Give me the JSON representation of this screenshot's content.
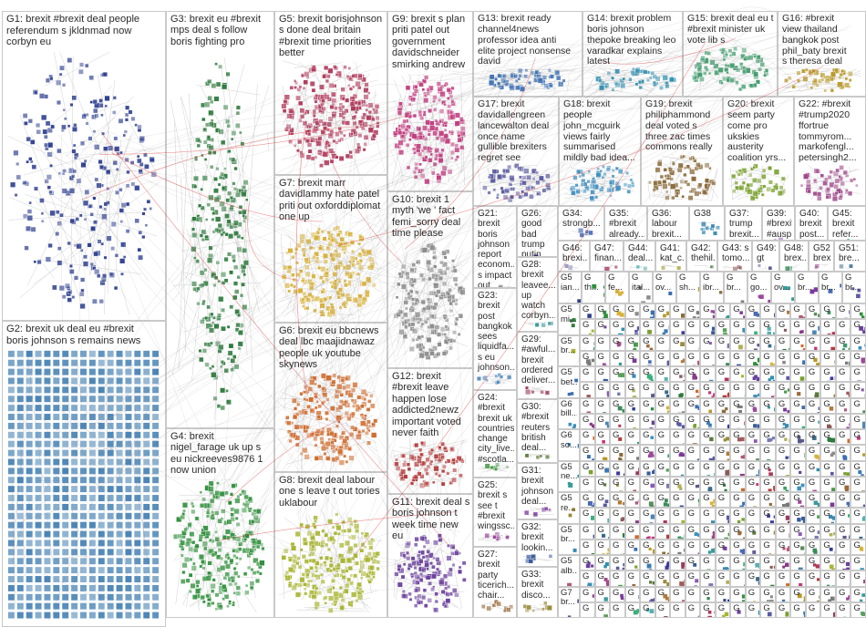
{
  "colors": {
    "border": "#c9c9c9",
    "edge": "#9a9a9a",
    "highlight": "#d33"
  },
  "groups": [
    {
      "id": "G1",
      "label": "G1: brexit #brexit deal people\nreferendum s jkldnmad now\ncorbyn eu",
      "color": "#2d3f8f"
    },
    {
      "id": "G2",
      "label": "G2: brexit uk deal eu #brexit\nboris johnson s remains news",
      "color": "#4a84b6"
    },
    {
      "id": "G3",
      "label": "G3: brexit eu #brexit\nmps deal s follow\nboris fighting pro",
      "color": "#2e7a3d"
    },
    {
      "id": "G4",
      "label": "G4: brexit\nnigel_farage uk up s\neu nickreeves9876 1\nnow union",
      "color": "#2e8f3a"
    },
    {
      "id": "G5",
      "label": "G5: brexit borisjohnson\ns done deal britain\n#brexit time priorities\nbetter",
      "color": "#b0375a"
    },
    {
      "id": "G6",
      "label": "G6: brexit eu bbcnews\ndeal lbc maajidnawaz\npeople uk youtube\nskynews",
      "color": "#d06a2a"
    },
    {
      "id": "G7",
      "label": "G7: brexit marr\ndavidlammy hate patel\npriti out oxforddiplomat\none up",
      "color": "#d9b23a"
    },
    {
      "id": "G8",
      "label": "G8: brexit deal labour\none s leave t out tories\nuklabour",
      "color": "#a8b530"
    },
    {
      "id": "G9",
      "label": "G9: brexit s plan\npriti patel out\ngovernment\ndavidschneider\nsmirking andrew",
      "color": "#c2397d"
    },
    {
      "id": "G10",
      "label": "G10: brexit 1\nmyth 'we ' fact\nfemi_sorry deal\ntime please",
      "color": "#8a8a8a"
    },
    {
      "id": "G11",
      "label": "G11: brexit deal s\nboris johnson t\nweek time new eu",
      "color": "#6a3f9c"
    },
    {
      "id": "G12",
      "label": "G12: brexit\n#brexit leave\nhappen lose\naddicted2newz\nimportant voted\nnever faith",
      "color": "#b33a3a"
    },
    {
      "id": "G13",
      "label": "G13: brexit ready\nchannel4news\nprofessor idea anti\nelite project nonsense\ndavid",
      "color": "#3a6fb3"
    },
    {
      "id": "G14",
      "label": "G14: brexit problem\nboris johnson\nthepoke breaking leo\nvaradkar explains\nlatest",
      "color": "#2f8fb0"
    },
    {
      "id": "G15",
      "label": "G15: brexit deal eu t\n#brexit minister uk\nvote lib s",
      "color": "#3d9a6a"
    },
    {
      "id": "G16",
      "label": "G16: #brexit\nview thailand\nbangkok post\nphil_baty brexit\ns theresa deal",
      "color": "#b89a2a"
    },
    {
      "id": "G17",
      "label": "G17: brexit\ndavidallengreen\nlancewalton deal\nonce name\ngullible brexiters\nregret see",
      "color": "#5a5aa0"
    },
    {
      "id": "G18",
      "label": "G18: brexit\npeople\njohn_mcguirk\nviews fairly\nsummarised\nmildly bad idea...",
      "color": "#3f8fbf"
    },
    {
      "id": "G19",
      "label": "G19: brexit\nphiliphammond\ndeal voted s\nthree zac times\ncommons really",
      "color": "#8a6a3a"
    },
    {
      "id": "G20",
      "label": "G20: brexit\nseem party\ncome pro\nukskies\nausterity\ncoalition yrs...",
      "color": "#7aa030"
    },
    {
      "id": "G22",
      "label": "G22: #brexit\n#trump2020\nffortrue\ntommyrom...\nmarkofengl...\npetersingh2...",
      "color": "#a04a8a"
    },
    {
      "id": "G21",
      "label": "G21:\nbrexit\nboris\njohnson\nreport\neconom...\ns impact\nout",
      "color": "#7a7a7a"
    },
    {
      "id": "G23",
      "label": "G23:\nbrexit\npost\nbangkok\nsees\nliquidfa...\ns eu\njohnson...",
      "color": "#3a7ab3"
    },
    {
      "id": "G24",
      "label": "G24:\n#brexit\nbrexit uk\ncountries\nchange\ncity_live...\n#scotla...",
      "color": "#4a9a4a"
    },
    {
      "id": "G25",
      "label": "G25:\nbrexit s\nsee t\n#brexit\nwingssc...",
      "color": "#9a4a9a"
    },
    {
      "id": "G26",
      "label": "G26:\ngood\nbad\ntrump\nputin\ndonald...",
      "color": "#3a3a9a"
    },
    {
      "id": "G27",
      "label": "G27:\nbrexit\nparty\nticerich...\nchair...",
      "color": "#9a6a3a"
    },
    {
      "id": "G28",
      "label": "G28:\nbrexit\nleavee...\nup\nwatch\ncorbyn...",
      "color": "#3a9a9a"
    },
    {
      "id": "G29",
      "label": "G29:\n#awful...\nbrexit\nordered\ndeliver...",
      "color": "#9a3a5a"
    },
    {
      "id": "G30",
      "label": "G30:\n#brexit\nreuters\nbritish\ndeal...",
      "color": "#5a7a3a"
    },
    {
      "id": "G31",
      "label": "G31:\nbrexit\njohnson\ndeal...",
      "color": "#7a3a9a"
    },
    {
      "id": "G32",
      "label": "G32:\nbrexit\nlookin...",
      "color": "#3a5a9a"
    },
    {
      "id": "G33",
      "label": "G33:\nbrexit\ndisco...",
      "color": "#9a8a3a"
    },
    {
      "id": "G34",
      "label": "G34:\nstrongb...",
      "color": "#4a6ab0"
    },
    {
      "id": "G35",
      "label": "G35:\n#brexit\nalready...",
      "color": "#5aa05a"
    },
    {
      "id": "G36",
      "label": "G36:\nlabour\nbrexit...",
      "color": "#a05a5a"
    },
    {
      "id": "G37",
      "label": "G37:\ntrump\nbrexit...",
      "color": "#5a5aa0"
    },
    {
      "id": "G38",
      "label": "G38",
      "color": "#3a8ab0"
    },
    {
      "id": "G39",
      "label": "G39:\n#brexit\n#ausp...",
      "color": "#8a5ab0"
    },
    {
      "id": "G40",
      "label": "G40:\nbrexit\npost...",
      "color": "#b07a3a"
    },
    {
      "id": "G45",
      "label": "G45:\nbrexit\nrefer...",
      "color": "#3ab07a"
    },
    {
      "id": "G46",
      "label": "G46:\nbrexi...",
      "color": "#7a7ab0"
    },
    {
      "id": "G47",
      "label": "G47:\nfinan...",
      "color": "#b05a7a"
    },
    {
      "id": "G44",
      "label": "G44:\ndeal...",
      "color": "#5ab0b0"
    },
    {
      "id": "G41",
      "label": "G41:\nkat_c...",
      "color": "#b0b05a"
    },
    {
      "id": "G42",
      "label": "G42:\nthehil...",
      "color": "#5a8a5a"
    },
    {
      "id": "G43",
      "label": "G43: s\ntomo...",
      "color": "#8a5a5a"
    },
    {
      "id": "G49",
      "label": "G49:\ngt",
      "color": "#5a5a8a"
    },
    {
      "id": "G48",
      "label": "G48:\nbrex...",
      "color": "#3a8a5a"
    },
    {
      "id": "G52",
      "label": "G52\nbrex...",
      "color": "#8a3a8a"
    },
    {
      "id": "G51",
      "label": "G51:\nbre...",
      "color": "#3a6a8a"
    }
  ],
  "small_groups": {
    "row1": [
      "G5\nian...",
      "G\nth...",
      "G\nfe...",
      "G\nital...",
      "G\nov...",
      "G\nsh...",
      "G\nibr...",
      "G\nbr...",
      "G\ngo...",
      "G\nov...",
      "G\nbr...",
      "G\nbr...",
      "G\nbr..."
    ],
    "left_col": [
      "G5\nmi...",
      "G5\nbr...",
      "G5\nbet...",
      "G6\nbill...",
      "G6\nso...",
      "G5\nne...",
      "G5\nre...",
      "G5\nbr...",
      "G5\nalb...",
      "G7\nbr..."
    ],
    "cell_label": "G"
  }
}
